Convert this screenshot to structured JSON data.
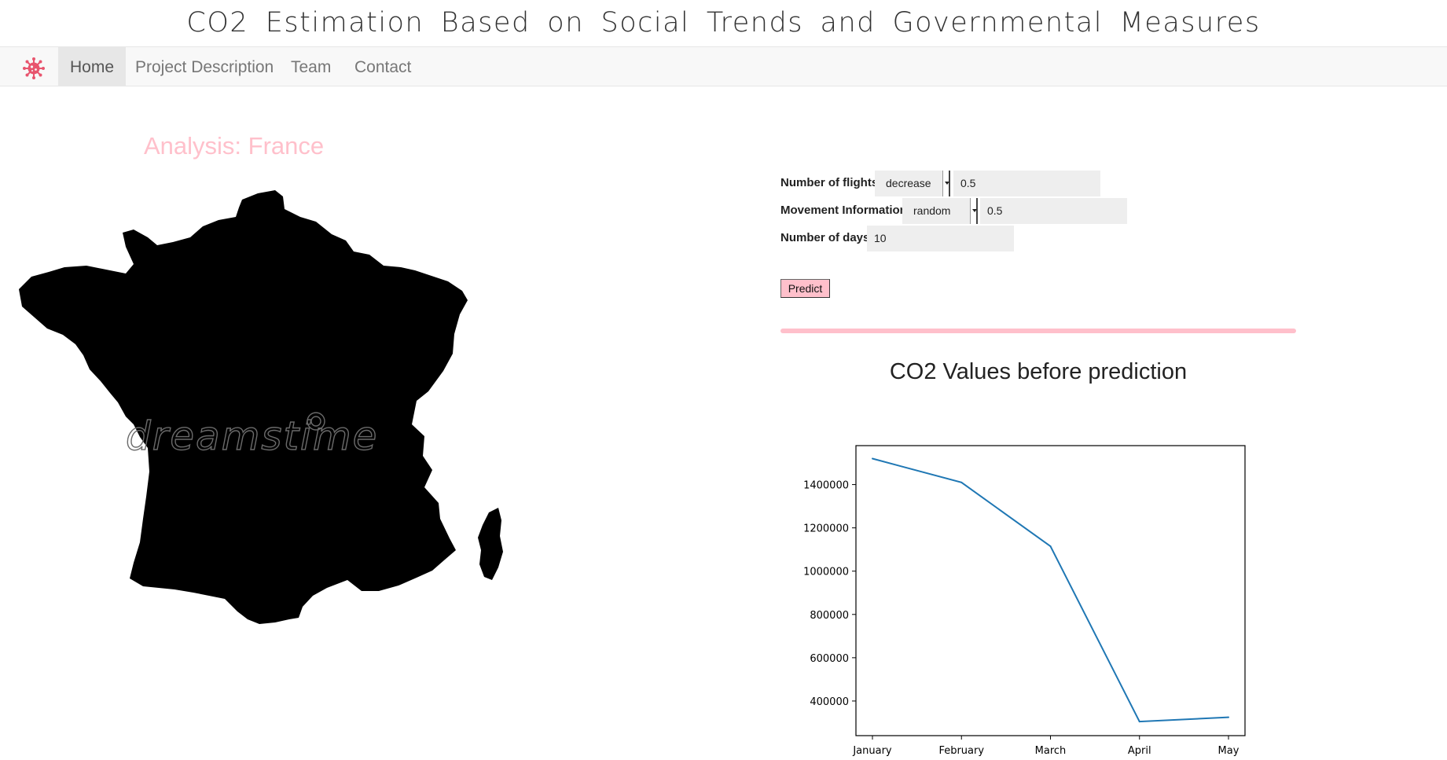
{
  "site": {
    "title": "CO2 Estimation Based on Social Trends and Governmental Measures"
  },
  "nav": {
    "brand_icon": "virus-icon",
    "items": [
      {
        "label": "Home",
        "active": true
      },
      {
        "label": "Project Description",
        "active": false
      },
      {
        "label": "Team",
        "active": false
      },
      {
        "label": "Contact",
        "active": false
      }
    ]
  },
  "analysis": {
    "title": "Analysis: France",
    "map_watermark": "dreamstime"
  },
  "colors": {
    "accent": "#ffc0cb",
    "brand_icon": "#e8556e",
    "line": "#1f77b4"
  },
  "form": {
    "flights": {
      "label": "Number of flights",
      "mode": "decrease",
      "value": "0.5"
    },
    "movement": {
      "label": "Movement Information",
      "mode": "random",
      "value": "0.5"
    },
    "days": {
      "label": "Number of days",
      "value": "10"
    },
    "predict_label": "Predict"
  },
  "chart_data": {
    "type": "line",
    "title": "CO2 Values before prediction",
    "xlabel": "",
    "ylabel": "",
    "categories": [
      "January",
      "February",
      "March",
      "April",
      "May"
    ],
    "series": [
      {
        "values": [
          1520000,
          1410000,
          1115000,
          305000,
          325000
        ]
      }
    ],
    "yticks": [
      400000,
      600000,
      800000,
      1000000,
      1200000,
      1400000
    ],
    "ylim": [
      240000,
      1580000
    ],
    "grid": false
  }
}
